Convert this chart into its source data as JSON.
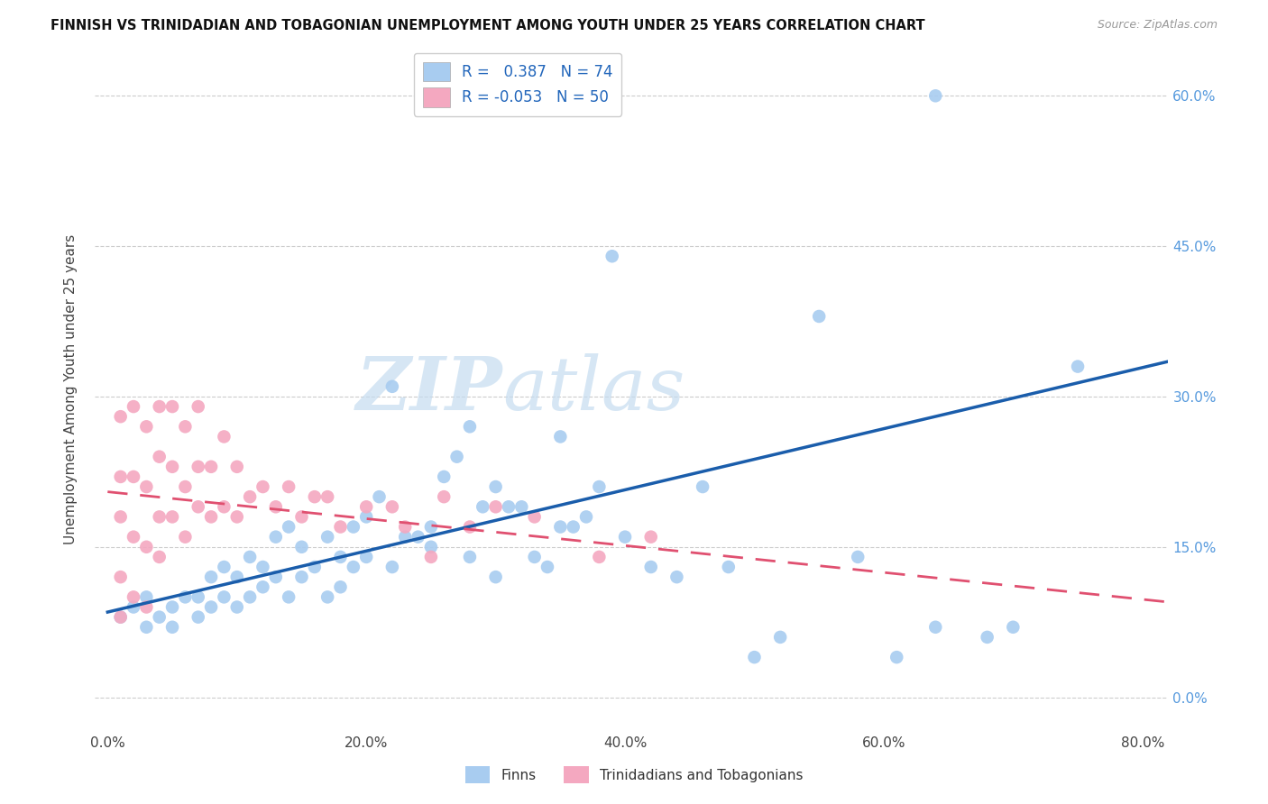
{
  "title": "FINNISH VS TRINIDADIAN AND TOBAGONIAN UNEMPLOYMENT AMONG YOUTH UNDER 25 YEARS CORRELATION CHART",
  "source": "Source: ZipAtlas.com",
  "xlabel_ticks": [
    "0.0%",
    "20.0%",
    "40.0%",
    "60.0%",
    "80.0%"
  ],
  "xlabel_tick_vals": [
    0.0,
    0.2,
    0.4,
    0.6,
    0.8
  ],
  "ylabel": "Unemployment Among Youth under 25 years",
  "ylabel_ticks": [
    "0.0%",
    "15.0%",
    "30.0%",
    "45.0%",
    "60.0%"
  ],
  "ylabel_tick_vals": [
    0.0,
    0.15,
    0.3,
    0.45,
    0.6
  ],
  "xlim": [
    -0.01,
    0.82
  ],
  "ylim": [
    -0.035,
    0.65
  ],
  "finn_color": "#A8CCF0",
  "tnt_color": "#F4A8C0",
  "finn_line_color": "#1A5DAB",
  "tnt_line_color": "#E05070",
  "finn_R": 0.387,
  "finn_N": 74,
  "tnt_R": -0.053,
  "tnt_N": 50,
  "watermark_zip": "ZIP",
  "watermark_atlas": "atlas",
  "legend_finn": "Finns",
  "legend_tnt": "Trinidadians and Tobagonians",
  "finn_x": [
    0.01,
    0.02,
    0.03,
    0.03,
    0.04,
    0.05,
    0.05,
    0.06,
    0.07,
    0.07,
    0.08,
    0.08,
    0.09,
    0.09,
    0.1,
    0.1,
    0.11,
    0.11,
    0.12,
    0.12,
    0.13,
    0.13,
    0.14,
    0.14,
    0.15,
    0.15,
    0.16,
    0.17,
    0.17,
    0.18,
    0.18,
    0.19,
    0.19,
    0.2,
    0.2,
    0.21,
    0.22,
    0.22,
    0.23,
    0.24,
    0.25,
    0.25,
    0.26,
    0.27,
    0.28,
    0.28,
    0.29,
    0.3,
    0.3,
    0.31,
    0.32,
    0.33,
    0.34,
    0.35,
    0.35,
    0.36,
    0.37,
    0.38,
    0.39,
    0.4,
    0.42,
    0.44,
    0.46,
    0.48,
    0.5,
    0.52,
    0.55,
    0.58,
    0.61,
    0.64,
    0.68,
    0.7,
    0.75,
    0.64
  ],
  "finn_y": [
    0.08,
    0.09,
    0.07,
    0.1,
    0.08,
    0.09,
    0.07,
    0.1,
    0.08,
    0.1,
    0.09,
    0.12,
    0.1,
    0.13,
    0.09,
    0.12,
    0.1,
    0.14,
    0.11,
    0.13,
    0.12,
    0.16,
    0.1,
    0.17,
    0.12,
    0.15,
    0.13,
    0.1,
    0.16,
    0.11,
    0.14,
    0.13,
    0.17,
    0.14,
    0.18,
    0.2,
    0.13,
    0.31,
    0.16,
    0.16,
    0.15,
    0.17,
    0.22,
    0.24,
    0.14,
    0.27,
    0.19,
    0.12,
    0.21,
    0.19,
    0.19,
    0.14,
    0.13,
    0.17,
    0.26,
    0.17,
    0.18,
    0.21,
    0.44,
    0.16,
    0.13,
    0.12,
    0.21,
    0.13,
    0.04,
    0.06,
    0.38,
    0.14,
    0.04,
    0.07,
    0.06,
    0.07,
    0.33,
    0.6
  ],
  "tnt_x": [
    0.01,
    0.01,
    0.01,
    0.01,
    0.01,
    0.02,
    0.02,
    0.02,
    0.02,
    0.03,
    0.03,
    0.03,
    0.03,
    0.04,
    0.04,
    0.04,
    0.04,
    0.05,
    0.05,
    0.05,
    0.06,
    0.06,
    0.06,
    0.07,
    0.07,
    0.07,
    0.08,
    0.08,
    0.09,
    0.09,
    0.1,
    0.1,
    0.11,
    0.12,
    0.13,
    0.14,
    0.15,
    0.16,
    0.17,
    0.18,
    0.2,
    0.22,
    0.23,
    0.25,
    0.26,
    0.28,
    0.3,
    0.33,
    0.38,
    0.42
  ],
  "tnt_y": [
    0.08,
    0.12,
    0.18,
    0.22,
    0.28,
    0.1,
    0.16,
    0.22,
    0.29,
    0.09,
    0.15,
    0.21,
    0.27,
    0.14,
    0.18,
    0.24,
    0.29,
    0.18,
    0.23,
    0.29,
    0.16,
    0.21,
    0.27,
    0.19,
    0.23,
    0.29,
    0.18,
    0.23,
    0.19,
    0.26,
    0.18,
    0.23,
    0.2,
    0.21,
    0.19,
    0.21,
    0.18,
    0.2,
    0.2,
    0.17,
    0.19,
    0.19,
    0.17,
    0.14,
    0.2,
    0.17,
    0.19,
    0.18,
    0.14,
    0.16
  ],
  "finn_line_x0": 0.0,
  "finn_line_x1": 0.82,
  "finn_line_y0": 0.085,
  "finn_line_y1": 0.335,
  "tnt_line_x0": 0.0,
  "tnt_line_x1": 0.82,
  "tnt_line_y0": 0.205,
  "tnt_line_y1": 0.095
}
